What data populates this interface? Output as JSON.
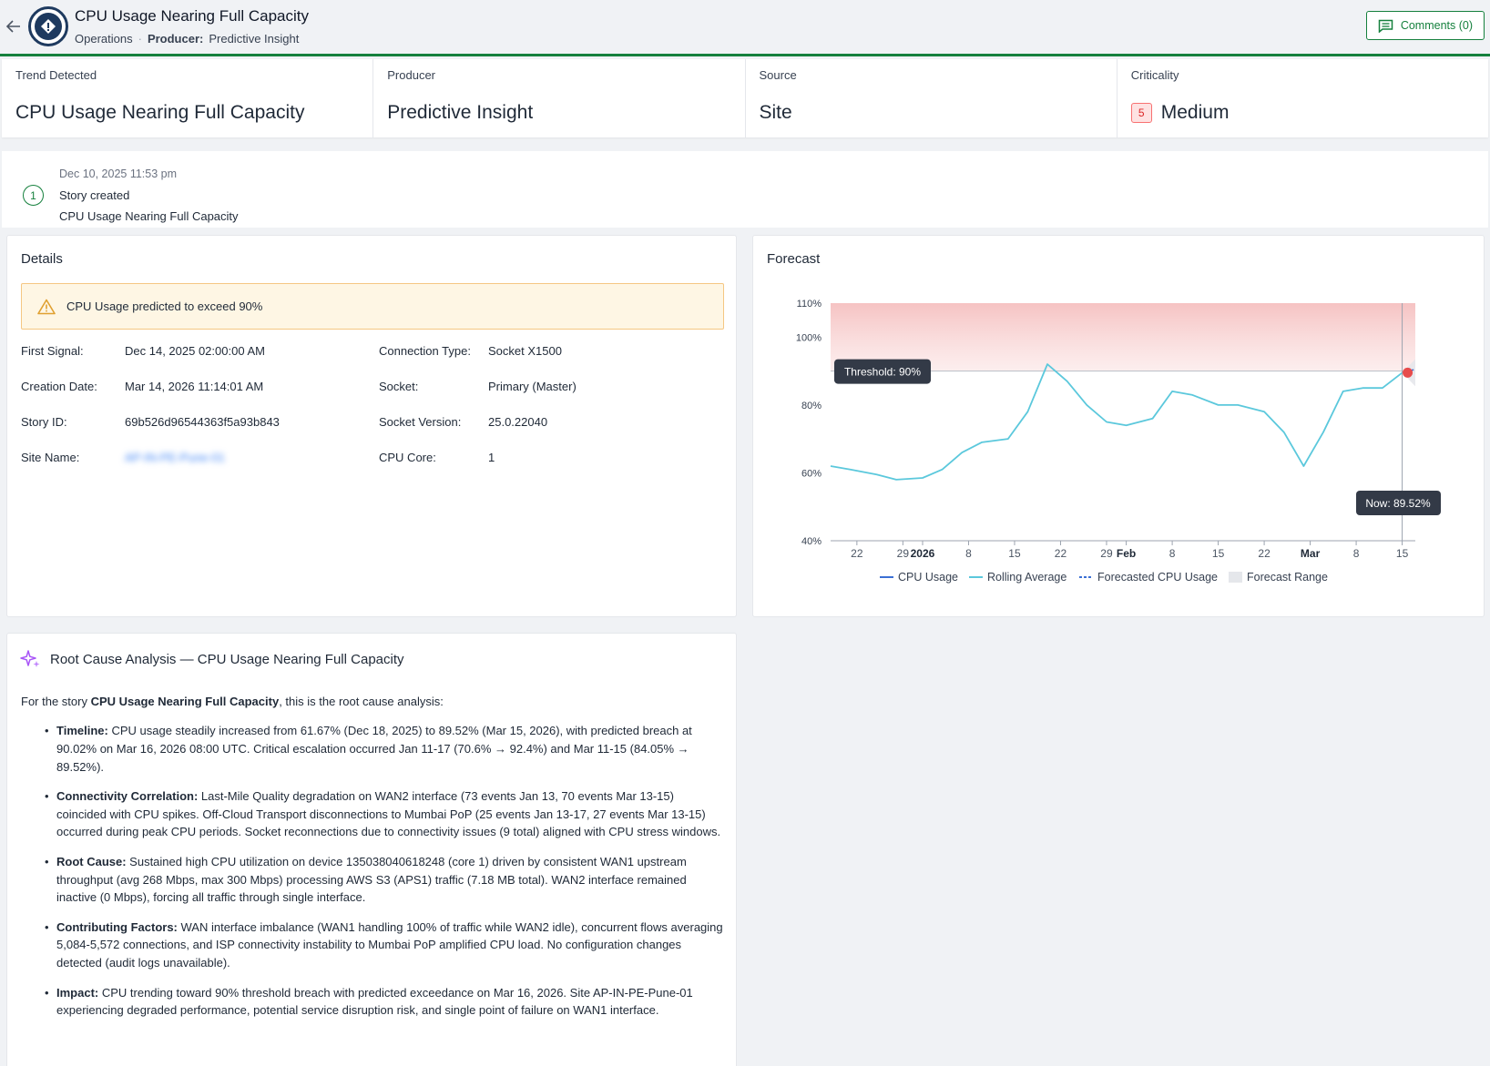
{
  "header": {
    "title": "CPU Usage Nearing Full Capacity",
    "breadcrumb_section": "Operations",
    "producer_label": "Producer:",
    "producer_value": "Predictive Insight",
    "comments_label": "Comments (0)"
  },
  "summary": {
    "trend_label": "Trend Detected",
    "trend_value": "CPU Usage Nearing Full Capacity",
    "producer_label": "Producer",
    "producer_value": "Predictive Insight",
    "source_label": "Source",
    "source_value": "Site",
    "criticality_label": "Criticality",
    "criticality_badge": "5",
    "criticality_value": "Medium"
  },
  "timeline": {
    "step": "1",
    "date": "Dec 10, 2025 11:53 pm",
    "event": "Story created",
    "detail": "CPU Usage Nearing Full Capacity"
  },
  "details": {
    "title": "Details",
    "alert": "CPU Usage predicted to exceed 90%",
    "left": [
      {
        "label": "First Signal:",
        "value": "Dec 14, 2025 02:00:00 AM"
      },
      {
        "label": "Creation Date:",
        "value": "Mar 14, 2026 11:14:01 AM"
      },
      {
        "label": "Story ID:",
        "value": "69b526d96544363f5a93b843"
      },
      {
        "label": "Site Name:",
        "value": "AP-IN-PE-Pune-01"
      }
    ],
    "right": [
      {
        "label": "Connection Type:",
        "value": "Socket X1500"
      },
      {
        "label": "Socket:",
        "value": "Primary (Master)"
      },
      {
        "label": "Socket Version:",
        "value": "25.0.22040"
      },
      {
        "label": "CPU Core:",
        "value": "1"
      }
    ]
  },
  "forecast": {
    "title": "Forecast",
    "threshold_label": "Threshold: 90%",
    "now_label": "Now: 89.52%",
    "legend": [
      "CPU Usage",
      "Rolling Average",
      "Forecasted CPU Usage",
      "Forecast Range"
    ]
  },
  "chart_data": {
    "type": "line",
    "title": "",
    "x_tick_labels": [
      "22",
      "29",
      "2026",
      "8",
      "15",
      "22",
      "29",
      "Feb",
      "8",
      "15",
      "22",
      "Mar",
      "8",
      "15"
    ],
    "y_tick_labels": [
      "40%",
      "60%",
      "80%",
      "100%",
      "110%"
    ],
    "ylim": [
      40,
      110
    ],
    "threshold": 90,
    "now_value": 89.52,
    "series": [
      {
        "name": "Rolling Average",
        "x": [
          "2025-12-18",
          "2025-12-21",
          "2025-12-25",
          "2025-12-28",
          "2026-01-01",
          "2026-01-04",
          "2026-01-07",
          "2026-01-10",
          "2026-01-14",
          "2026-01-17",
          "2026-01-20",
          "2026-01-23",
          "2026-01-26",
          "2026-01-29",
          "2026-02-01",
          "2026-02-05",
          "2026-02-08",
          "2026-02-11",
          "2026-02-15",
          "2026-02-18",
          "2026-02-22",
          "2026-02-25",
          "2026-02-28",
          "2026-03-03",
          "2026-03-06",
          "2026-03-09",
          "2026-03-12",
          "2026-03-15"
        ],
        "values": [
          62,
          61,
          59.5,
          58,
          58.5,
          61,
          66,
          69,
          70,
          78,
          92,
          87,
          80,
          75,
          74,
          76,
          84,
          83,
          80,
          80,
          78,
          72,
          62,
          72,
          84,
          85,
          85,
          89.5
        ]
      },
      {
        "name": "Forecasted CPU Usage",
        "x": [
          "2026-03-15",
          "2026-03-16",
          "2026-03-17"
        ],
        "values": [
          89.52,
          90.02,
          90.5
        ]
      }
    ]
  },
  "rca": {
    "title": "Root Cause Analysis — CPU Usage Nearing Full Capacity",
    "intro_prefix": "For the story ",
    "intro_bold": "CPU Usage Nearing Full Capacity",
    "intro_suffix": ", this is the root cause analysis:",
    "items": [
      {
        "label": "Timeline:",
        "text": " CPU usage steadily increased from 61.67% (Dec 18, 2025) to 89.52% (Mar 15, 2026), with predicted breach at 90.02% on Mar 16, 2026 08:00 UTC. Critical escalation occurred Jan 11-17 (70.6% → 92.4%) and Mar 11-15 (84.05% → 89.52%)."
      },
      {
        "label": "Connectivity Correlation:",
        "text": " Last-Mile Quality degradation on WAN2 interface (73 events Jan 13, 70 events Mar 13-15) coincided with CPU spikes. Off-Cloud Transport disconnections to Mumbai PoP (25 events Jan 13-17, 27 events Mar 13-15) occurred during peak CPU periods. Socket reconnections due to connectivity issues (9 total) aligned with CPU stress windows."
      },
      {
        "label": "Root Cause:",
        "text": " Sustained high CPU utilization on device 135038040618248 (core 1) driven by consistent WAN1 upstream throughput (avg 268 Mbps, max 300 Mbps) processing AWS S3 (APS1) traffic (7.18 MB total). WAN2 interface remained inactive (0 Mbps), forcing all traffic through single interface."
      },
      {
        "label": "Contributing Factors:",
        "text": " WAN interface imbalance (WAN1 handling 100% of traffic while WAN2 idle), concurrent flows averaging 5,084-5,572 connections, and ISP connectivity instability to Mumbai PoP amplified CPU load. No configuration changes detected (audit logs unavailable)."
      },
      {
        "label": "Impact:",
        "text": " CPU trending toward 90% threshold breach with predicted exceedance on Mar 16, 2026. Site AP-IN-PE-Pune-01 experiencing degraded performance, potential service disruption risk, and single point of failure on WAN1 interface."
      }
    ]
  }
}
